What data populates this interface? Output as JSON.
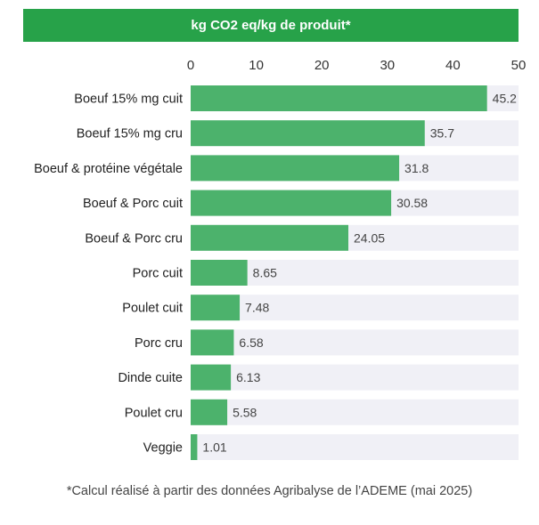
{
  "title": "kg CO2 eq/kg de produit*",
  "footnote": "*Calcul réalisé à partir des données Agribalyse de l’ADEME (mai 2025)",
  "colors": {
    "bar": "#4cb26c",
    "track": "#f0f0f6",
    "title_bg": "#27a249",
    "title_text": "#ffffff",
    "text": "#222222",
    "value_text": "#444444"
  },
  "chart_data": {
    "type": "bar",
    "orientation": "horizontal",
    "title": "kg CO2 eq/kg de produit*",
    "xlim": [
      0,
      50
    ],
    "xticks": [
      0,
      10,
      20,
      30,
      40,
      50
    ],
    "axis_position": "top",
    "grid": false,
    "legend": "none",
    "categories": [
      "Boeuf 15% mg cuit",
      "Boeuf 15% mg cru",
      "Boeuf & protéine végétale",
      "Boeuf & Porc cuit",
      "Boeuf & Porc cru",
      "Porc cuit",
      "Poulet cuit",
      "Porc cru",
      "Dinde cuite",
      "Poulet cru",
      "Veggie"
    ],
    "values": [
      45.2,
      35.7,
      31.8,
      30.58,
      24.05,
      8.65,
      7.48,
      6.58,
      6.13,
      5.58,
      1.01
    ],
    "value_labels": [
      "45.2",
      "35.7",
      "31.8",
      "30.58",
      "24.05",
      "8.65",
      "7.48",
      "6.58",
      "6.13",
      "5.58",
      "1.01"
    ]
  }
}
